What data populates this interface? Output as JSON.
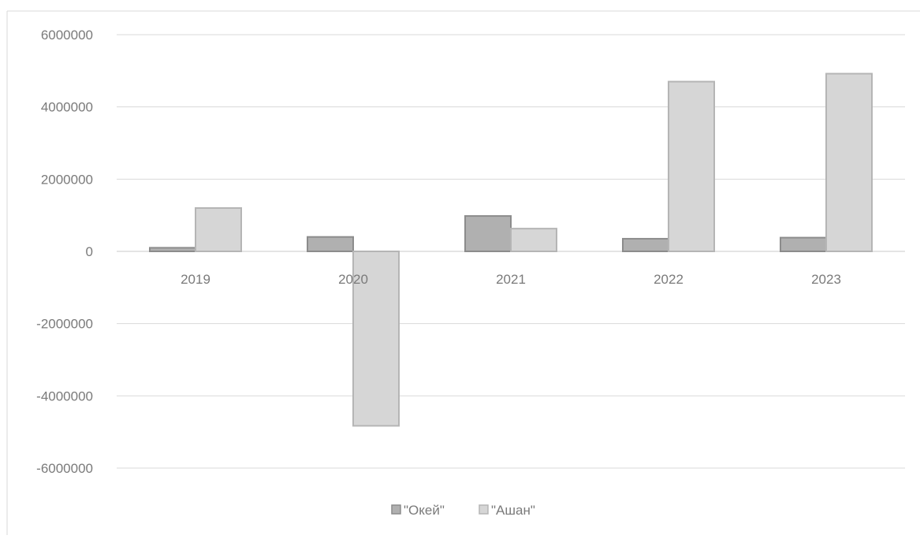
{
  "chart_data": {
    "type": "bar",
    "categories": [
      "2019",
      "2020",
      "2021",
      "2022",
      "2023"
    ],
    "series": [
      {
        "name": "\"Окей\"",
        "values": [
          100000,
          400000,
          980000,
          350000,
          380000
        ],
        "color": "#b0b0b0"
      },
      {
        "name": "\"Ашан\"",
        "values": [
          1200000,
          -4830000,
          630000,
          4700000,
          4920000
        ],
        "color": "#d6d6d6"
      }
    ],
    "ylim": [
      -6000000,
      6000000
    ],
    "yticks": [
      "6000000",
      "4000000",
      "2000000",
      "0",
      "-2000000",
      "-4000000",
      "-6000000"
    ],
    "grid": true,
    "legend_position": "bottom",
    "title": "",
    "xlabel": "",
    "ylabel": "",
    "colors": {
      "grid": "#d9d9d9",
      "axis_text": "#7a7a7a",
      "bar_stroke_okey": "#8c8c8c",
      "bar_stroke_ashan": "#b5b5b5"
    }
  }
}
